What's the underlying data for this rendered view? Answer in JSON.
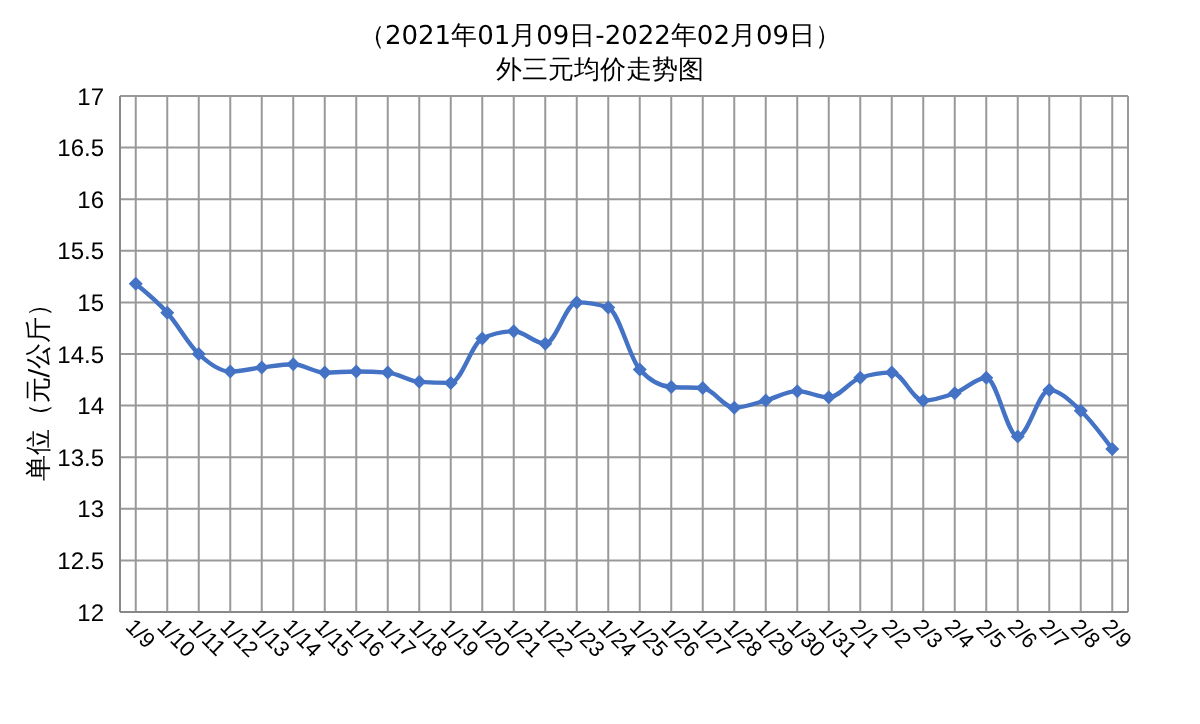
{
  "chart_data": {
    "type": "line",
    "title": "（2021年01月09日-2022年02月09日）",
    "subtitle": "外三元均价走势图",
    "ylabel": "单位（元/公斤）",
    "categories": [
      "1/9",
      "1/10",
      "1/11",
      "1/12",
      "1/13",
      "1/14",
      "1/15",
      "1/16",
      "1/17",
      "1/18",
      "1/19",
      "1/20",
      "1/21",
      "1/22",
      "1/23",
      "1/24",
      "1/25",
      "1/26",
      "1/27",
      "1/28",
      "1/29",
      "1/30",
      "1/31",
      "2/1",
      "2/2",
      "2/3",
      "2/4",
      "2/5",
      "2/6",
      "2/7",
      "2/8",
      "2/9"
    ],
    "series": [
      {
        "color": "#4472c4",
        "values": [
          15.18,
          14.9,
          14.5,
          14.33,
          14.37,
          14.4,
          14.32,
          14.33,
          14.32,
          14.23,
          14.22,
          14.65,
          14.72,
          14.6,
          15.0,
          14.95,
          14.35,
          14.18,
          14.17,
          13.98,
          14.05,
          14.14,
          14.08,
          14.27,
          14.32,
          14.05,
          14.12,
          14.27,
          13.7,
          14.15,
          13.95,
          13.58
        ]
      }
    ],
    "ylim": [
      12,
      17
    ],
    "yticks": [
      12,
      12.5,
      13,
      13.5,
      14,
      14.5,
      15,
      15.5,
      16,
      16.5,
      17
    ],
    "grid": true,
    "legend": false,
    "marker": "diamond",
    "line_style": "solid"
  }
}
